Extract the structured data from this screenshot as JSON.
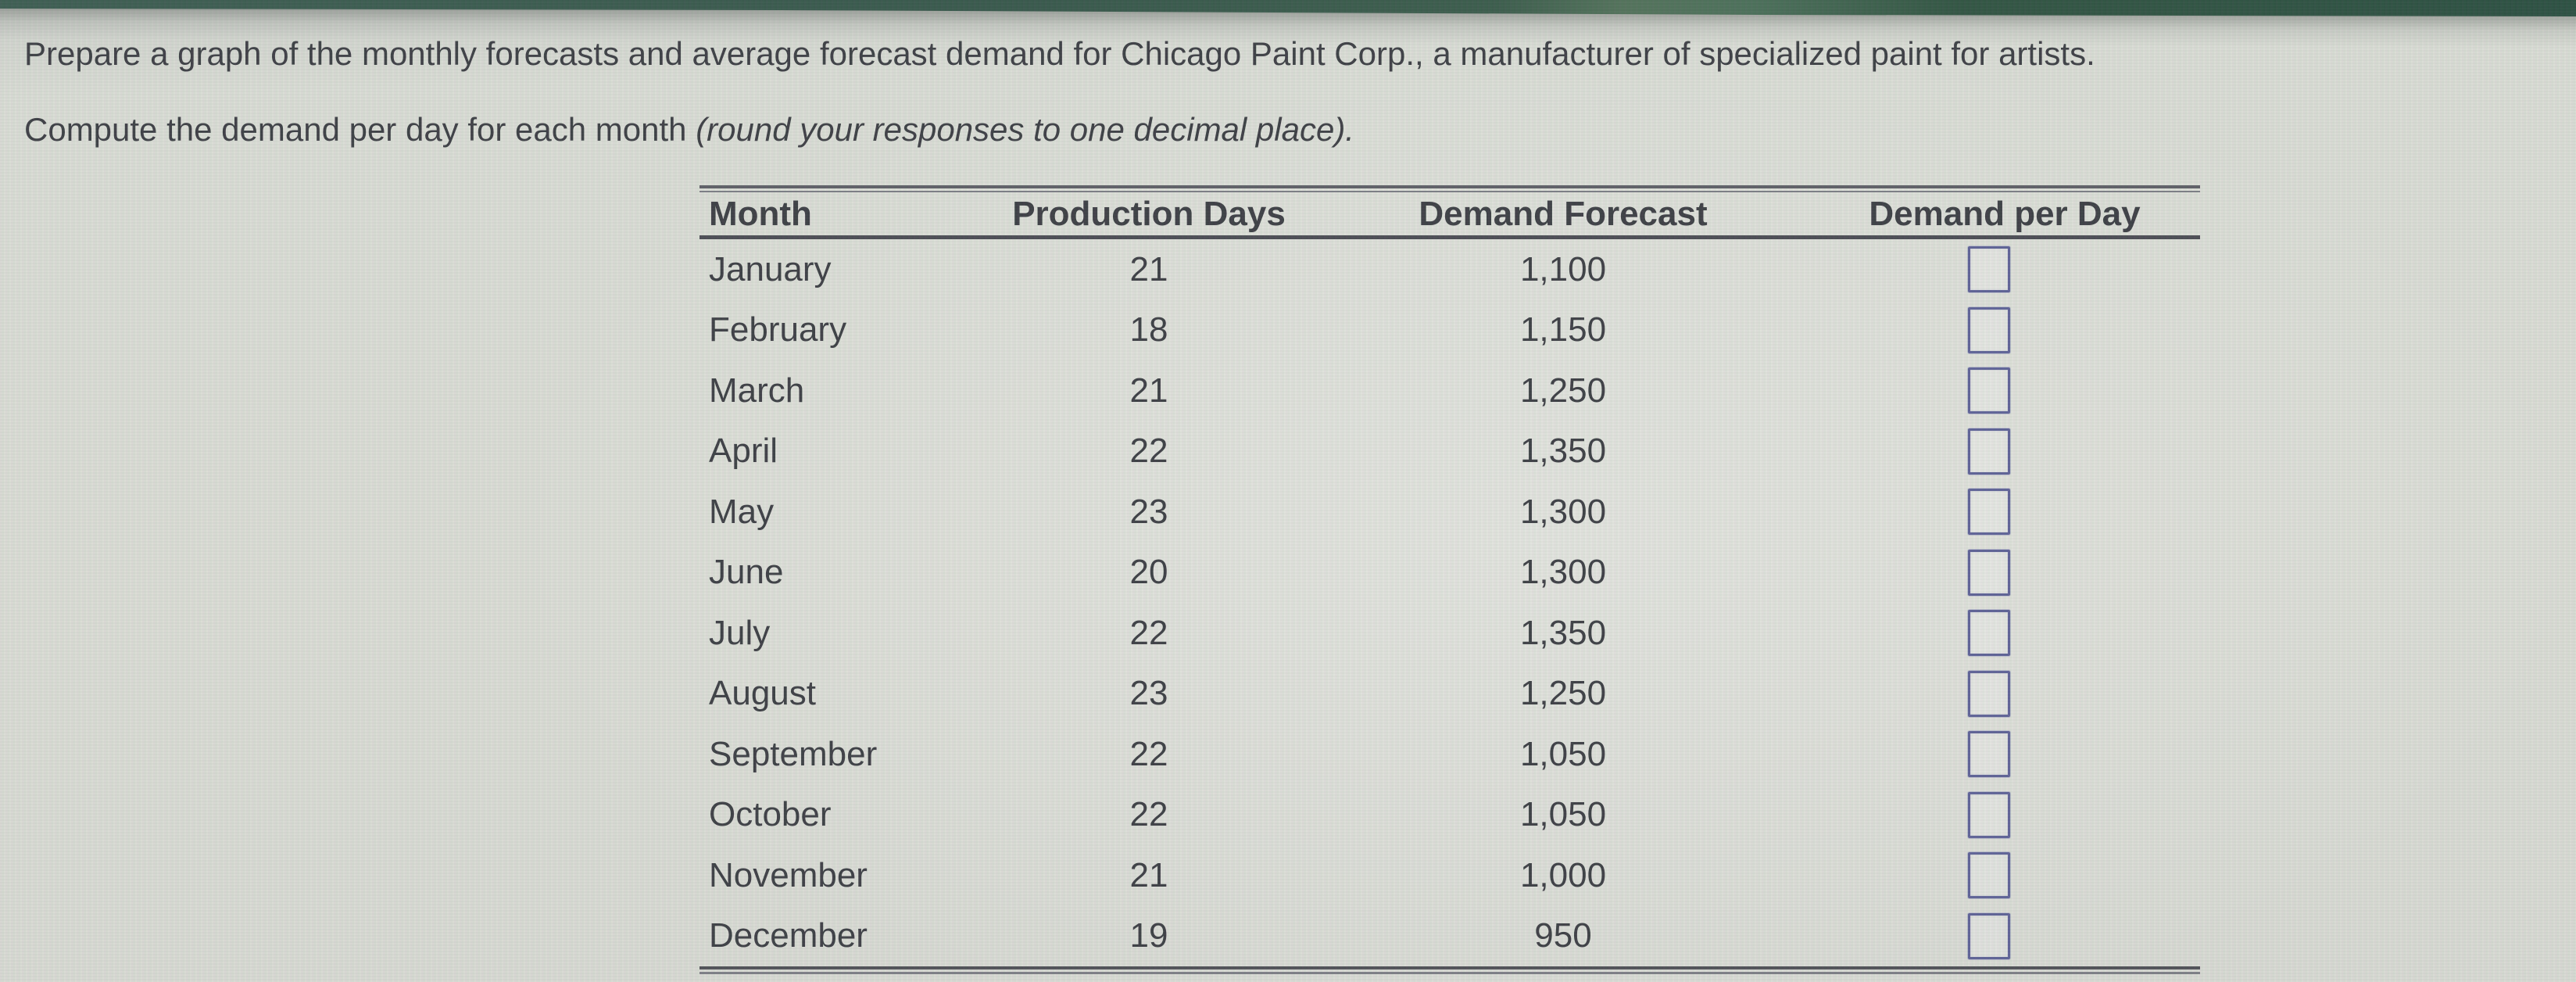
{
  "page": {
    "topbar_color": "#2a4c3f",
    "background_color": "#d8dad2",
    "accent_input_border": "#53578f",
    "rule_color": "#3f4048"
  },
  "instructions": {
    "line1": "Prepare a graph of the monthly forecasts and average forecast demand for Chicago Paint Corp., a manufacturer of specialized paint for artists.",
    "line2_regular": "Compute the demand per day for each month ",
    "line2_italic": "(round your responses to one decimal place)."
  },
  "table": {
    "headers": [
      "Month",
      "Production Days",
      "Demand Forecast",
      "Demand per Day"
    ],
    "rows": [
      {
        "month": "January",
        "production_days": "21",
        "demand_forecast": "1,100",
        "demand_per_day": ""
      },
      {
        "month": "February",
        "production_days": "18",
        "demand_forecast": "1,150",
        "demand_per_day": ""
      },
      {
        "month": "March",
        "production_days": "21",
        "demand_forecast": "1,250",
        "demand_per_day": ""
      },
      {
        "month": "April",
        "production_days": "22",
        "demand_forecast": "1,350",
        "demand_per_day": ""
      },
      {
        "month": "May",
        "production_days": "23",
        "demand_forecast": "1,300",
        "demand_per_day": ""
      },
      {
        "month": "June",
        "production_days": "20",
        "demand_forecast": "1,300",
        "demand_per_day": ""
      },
      {
        "month": "July",
        "production_days": "22",
        "demand_forecast": "1,350",
        "demand_per_day": ""
      },
      {
        "month": "August",
        "production_days": "23",
        "demand_forecast": "1,250",
        "demand_per_day": ""
      },
      {
        "month": "September",
        "production_days": "22",
        "demand_forecast": "1,050",
        "demand_per_day": ""
      },
      {
        "month": "October",
        "production_days": "22",
        "demand_forecast": "1,050",
        "demand_per_day": ""
      },
      {
        "month": "November",
        "production_days": "21",
        "demand_forecast": "1,000",
        "demand_per_day": ""
      },
      {
        "month": "December",
        "production_days": "19",
        "demand_forecast": "950",
        "demand_per_day": ""
      }
    ]
  }
}
